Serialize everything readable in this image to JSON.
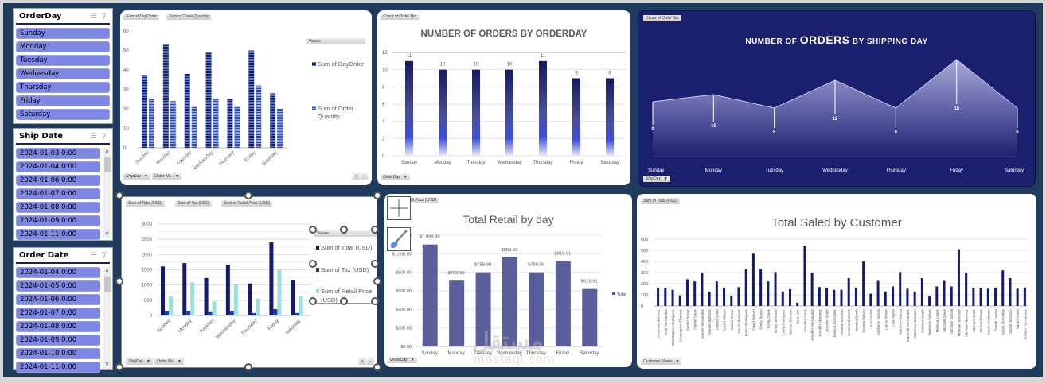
{
  "slicers": {
    "orderday": {
      "title": "OrderDay",
      "items": [
        "Sunday",
        "Monday",
        "Tuesday",
        "Wednesday",
        "Thursday",
        "Friday",
        "Saturday"
      ]
    },
    "shipdate": {
      "title": "Ship Date",
      "items": [
        "2024-01-03 0:00",
        "2024-01-04 0:00",
        "2024-01-06 0:00",
        "2024-01-07 0:00",
        "2024-01-08 0:00",
        "2024-01-09 0:00",
        "2024-01-11 0:00"
      ]
    },
    "orderdate": {
      "title": "Order Date",
      "items": [
        "2024-01-04 0:00",
        "2024-01-05 0:00",
        "2024-01-06 0:00",
        "2024-01-07 0:00",
        "2024-01-08 0:00",
        "2024-01-09 0:00",
        "2024-01-10 0:00",
        "2024-01-11 0:00"
      ]
    }
  },
  "chart1": {
    "field_buttons": [
      "Sum of DayOrder",
      "Sum of Order Quantity"
    ],
    "legend_header": "Values",
    "axis_buttons": [
      "ShipDay",
      "Order No."
    ],
    "zoom_buttons": [
      "+",
      "−"
    ]
  },
  "chart2": {
    "field_buttons": [
      "Count of Order No."
    ],
    "axis_buttons": [
      "OrderDay"
    ]
  },
  "chart3": {
    "field_buttons": [
      "Count of Order No."
    ],
    "title_parts": [
      "NUMBER OF ",
      "ORDERS",
      " BY SHIPPING DAY"
    ],
    "axis_buttons": [
      "ShipDay"
    ]
  },
  "chart4": {
    "field_buttons": [
      "Sum of Total (USD)",
      "Sum of Tax (USD)",
      "Sum of Retail Price (USD)"
    ],
    "legend_header": "Values",
    "axis_buttons": [
      "ShipDay",
      "Order No."
    ],
    "zoom_buttons": [
      "+",
      "−"
    ]
  },
  "chart5": {
    "field_buttons": [
      "Sum of Retail Price (USD)"
    ],
    "axis_buttons": [
      "OrderDay"
    ]
  },
  "chart6": {
    "field_buttons": [
      "Sum of Total (USD)"
    ],
    "axis_buttons": [
      "Customer Name"
    ]
  },
  "watermark": {
    "arabic": "مستقل",
    "latin": "mostaql.com"
  },
  "chart_data": [
    {
      "type": "bar",
      "title": "",
      "categories": [
        "Sunday",
        "Monday",
        "Tuesday",
        "Wednesday",
        "Thursday",
        "Friday",
        "Saturday"
      ],
      "series": [
        {
          "name": "Sum of DayOrder",
          "values": [
            37,
            53,
            38,
            49,
            25,
            50,
            28
          ],
          "color": "#1a2070"
        },
        {
          "name": "Sum of Order Quantity",
          "values": [
            25,
            24,
            21,
            25,
            21,
            32,
            20
          ],
          "color": "#2b4fc8"
        }
      ],
      "ylim": [
        0,
        60
      ],
      "yticks": [
        0,
        10,
        20,
        30,
        40,
        50,
        60
      ],
      "legend": "right",
      "grid": false
    },
    {
      "type": "bar",
      "title": "NUMBER OF ORDERS BY ORDERDAY",
      "categories": [
        "Sunday",
        "Monday",
        "Tuesday",
        "Wednesday",
        "Thursday",
        "Friday",
        "Saturday"
      ],
      "values": [
        11,
        10,
        10,
        10,
        11,
        9,
        9
      ],
      "ylim": [
        0,
        12
      ],
      "yticks": [
        0,
        2,
        4,
        6,
        8,
        10,
        12
      ],
      "grid": true,
      "data_labels": true
    },
    {
      "type": "area",
      "title": "NUMBER OF ORDERS BY SHIPPING DAY",
      "categories": [
        "Sunday",
        "Monday",
        "Tuesday",
        "Wednesday",
        "Thursday",
        "Friday",
        "Saturday"
      ],
      "values": [
        9,
        10,
        8,
        12,
        8,
        15,
        8
      ],
      "data_labels": true,
      "grid": false
    },
    {
      "type": "bar",
      "title": "",
      "categories": [
        "Sunday",
        "Monday",
        "Tuesday",
        "Wednesday",
        "Thursday",
        "Friday",
        "Saturday"
      ],
      "series": [
        {
          "name": "Sum of Total (USD)",
          "values": [
            1610,
            1720,
            1230,
            1670,
            1050,
            2400,
            1150
          ],
          "color": "#141a6e"
        },
        {
          "name": "Sum of Tax (USD)",
          "values": [
            130,
            130,
            110,
            130,
            80,
            210,
            80
          ],
          "color": "#1e3aa8"
        },
        {
          "name": "Sum of Retail Price (USD)",
          "values": [
            640,
            1090,
            460,
            1030,
            560,
            1500,
            640
          ],
          "color": "#9adfdc"
        }
      ],
      "ylim": [
        0,
        3000
      ],
      "yticks": [
        0,
        500,
        1000,
        1500,
        2000,
        2500,
        3000
      ],
      "legend": "right",
      "grid": true
    },
    {
      "type": "bar",
      "title": "Total Retail by day",
      "categories": [
        "Sunday",
        "Monday",
        "Tuesday",
        "Wednesday",
        "Thursday",
        "Friday",
        "Saturday"
      ],
      "values": [
        1099.89,
        709.9,
        799.9,
        959.9,
        799.89,
        919.91,
        619.91
      ],
      "value_labels": [
        "$1,099.89",
        "$709.90",
        "$799.90",
        "$959.90",
        "$799.89",
        "$919.91",
        "$619.91"
      ],
      "ylim": [
        0,
        1200
      ],
      "yticks": [
        "$0.00",
        "$200.00",
        "$400.00",
        "$600.00",
        "$800.00",
        "$1,000.00",
        "$1,200.00"
      ],
      "legend": [
        "Total"
      ],
      "grid": true
    },
    {
      "type": "bar",
      "title": "Total Saled by Customer",
      "categories": [
        "Amanda Martinez",
        "Amy Hernandez",
        "Christopher Rodriguez",
        "Christopher Thomas",
        "Daniel Brown",
        "Daniel Davis",
        "Daniel Hernandez",
        "Daniel Martinez",
        "Daniel Smith",
        "Daniel Wilson",
        "David Brown",
        "David Martinez",
        "David Rodriguez",
        "David Wilson",
        "Emily Brown",
        "Emily Davis",
        "Emily Johnson",
        "Emily Rodriguez",
        "James Johnson",
        "Jane Doe",
        "Jennifer Davis",
        "Jennifer Hernandez",
        "Jennifer Martinez",
        "Jennifer Smith",
        "Jessica Gonzalez",
        "Jessica Johnson",
        "Jessica Martinez",
        "Jessica Smith",
        "Jessica Wilson",
        "John Smith",
        "Kimberly Garcia",
        "Laura Brown",
        "Lisa Taylor",
        "Matthew Garcia",
        "Matthew Hernandez",
        "Matthew Johnson",
        "Matthew Smith",
        "Matthew Wilson",
        "Melissa Lopez",
        "Michael Davis",
        "Michael Garcia",
        "Michael Johnson",
        "Michael Martinez",
        "Michael Smith",
        "Richard Perez",
        "Sarah Anderson",
        "Sarah Garcia",
        "Sarah Gonzalez",
        "Sarah Johnson",
        "Sarah Smith",
        "William Hernandez"
      ],
      "values": [
        165,
        165,
        145,
        95,
        240,
        220,
        295,
        130,
        220,
        165,
        88,
        170,
        330,
        470,
        330,
        220,
        305,
        130,
        150,
        30,
        540,
        295,
        170,
        165,
        145,
        145,
        250,
        165,
        400,
        110,
        225,
        130,
        175,
        305,
        155,
        130,
        250,
        88,
        175,
        225,
        175,
        510,
        300,
        165,
        165,
        155,
        165,
        320,
        250,
        155,
        165
      ],
      "ylim": [
        0,
        600
      ],
      "yticks": [
        0,
        100,
        200,
        300,
        400,
        500,
        600
      ],
      "grid": true
    }
  ]
}
